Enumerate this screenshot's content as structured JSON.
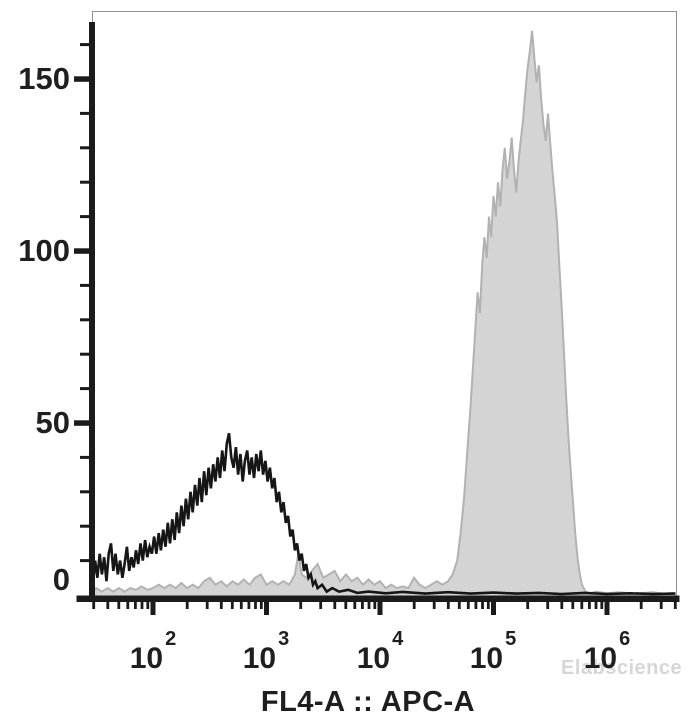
{
  "figure": {
    "watermark_text": "Elabscience",
    "x_axis_title": "FL4-A :: APC-A",
    "y_tick_labels": [
      "150",
      "100",
      "50",
      "0"
    ],
    "x_tick_labels": [
      {
        "base": "10",
        "exp": "2"
      },
      {
        "base": "10",
        "exp": "3"
      },
      {
        "base": "10",
        "exp": "4"
      },
      {
        "base": "10",
        "exp": "5"
      },
      {
        "base": "10",
        "exp": "6"
      }
    ]
  },
  "chart_data": {
    "type": "area",
    "subtype": "flow-cytometry-histogram-overlay",
    "title": "",
    "xlabel": "FL4-A :: APC-A",
    "ylabel": "",
    "x_scale": "log10",
    "x_domain_log10": [
      1.46,
      6.6
    ],
    "ylim": [
      0,
      170
    ],
    "y_major_ticks": [
      0,
      50,
      100,
      150
    ],
    "y_minor_tick_step": 10,
    "y_minor_tick_max": 160,
    "x_major_decades": [
      2,
      3,
      4,
      5,
      6
    ],
    "x_minor_mantissas": [
      2,
      3,
      4,
      5,
      6,
      7,
      8,
      9
    ],
    "grid": false,
    "legend": false,
    "colors": {
      "black_line": "#161616",
      "gray_fill": "#d4d4d4",
      "gray_line": "#b2b2b2",
      "axis": "#1b1b1b",
      "border": "#909090",
      "text": "#1f1f1f",
      "watermark": "#d6d6d6"
    },
    "series": [
      {
        "name": "black-open-histogram",
        "style": "line",
        "color": "#161616",
        "peak_log10x": 2.67,
        "peak_count": 47,
        "points_log10x_count": [
          [
            1.46,
            8
          ],
          [
            1.47,
            3
          ],
          [
            1.49,
            10
          ],
          [
            1.51,
            5
          ],
          [
            1.53,
            12
          ],
          [
            1.55,
            6
          ],
          [
            1.57,
            11
          ],
          [
            1.59,
            4
          ],
          [
            1.61,
            12
          ],
          [
            1.63,
            15
          ],
          [
            1.65,
            7
          ],
          [
            1.67,
            12
          ],
          [
            1.69,
            6
          ],
          [
            1.71,
            10
          ],
          [
            1.73,
            5
          ],
          [
            1.75,
            9
          ],
          [
            1.77,
            14
          ],
          [
            1.79,
            7
          ],
          [
            1.81,
            11
          ],
          [
            1.83,
            8
          ],
          [
            1.85,
            13
          ],
          [
            1.87,
            9
          ],
          [
            1.89,
            15
          ],
          [
            1.91,
            10
          ],
          [
            1.93,
            16
          ],
          [
            1.95,
            11
          ],
          [
            1.97,
            14
          ],
          [
            1.99,
            12
          ],
          [
            2.01,
            17
          ],
          [
            2.03,
            12
          ],
          [
            2.05,
            18
          ],
          [
            2.07,
            13
          ],
          [
            2.09,
            19
          ],
          [
            2.11,
            14
          ],
          [
            2.13,
            21
          ],
          [
            2.15,
            15
          ],
          [
            2.17,
            22
          ],
          [
            2.19,
            16
          ],
          [
            2.21,
            24
          ],
          [
            2.23,
            18
          ],
          [
            2.25,
            26
          ],
          [
            2.27,
            20
          ],
          [
            2.29,
            28
          ],
          [
            2.31,
            22
          ],
          [
            2.33,
            30
          ],
          [
            2.35,
            24
          ],
          [
            2.37,
            32
          ],
          [
            2.39,
            26
          ],
          [
            2.41,
            34
          ],
          [
            2.43,
            27
          ],
          [
            2.45,
            36
          ],
          [
            2.47,
            29
          ],
          [
            2.49,
            37
          ],
          [
            2.51,
            31
          ],
          [
            2.53,
            38
          ],
          [
            2.55,
            33
          ],
          [
            2.57,
            40
          ],
          [
            2.59,
            34
          ],
          [
            2.61,
            42
          ],
          [
            2.63,
            36
          ],
          [
            2.65,
            44
          ],
          [
            2.67,
            47
          ],
          [
            2.69,
            40
          ],
          [
            2.71,
            37
          ],
          [
            2.73,
            43
          ],
          [
            2.75,
            35
          ],
          [
            2.77,
            41
          ],
          [
            2.79,
            33
          ],
          [
            2.81,
            39
          ],
          [
            2.83,
            42
          ],
          [
            2.85,
            35
          ],
          [
            2.87,
            40
          ],
          [
            2.89,
            34
          ],
          [
            2.91,
            41
          ],
          [
            2.93,
            36
          ],
          [
            2.95,
            42
          ],
          [
            2.97,
            35
          ],
          [
            2.99,
            39
          ],
          [
            3.01,
            33
          ],
          [
            3.03,
            37
          ],
          [
            3.05,
            31
          ],
          [
            3.07,
            34
          ],
          [
            3.09,
            27
          ],
          [
            3.11,
            30
          ],
          [
            3.13,
            24
          ],
          [
            3.15,
            27
          ],
          [
            3.17,
            21
          ],
          [
            3.19,
            23
          ],
          [
            3.21,
            17
          ],
          [
            3.23,
            19
          ],
          [
            3.25,
            13
          ],
          [
            3.27,
            15
          ],
          [
            3.29,
            10
          ],
          [
            3.31,
            12
          ],
          [
            3.33,
            7
          ],
          [
            3.35,
            9
          ],
          [
            3.37,
            5
          ],
          [
            3.39,
            6
          ],
          [
            3.41,
            3
          ],
          [
            3.43,
            4
          ],
          [
            3.45,
            2
          ],
          [
            3.49,
            3
          ],
          [
            3.53,
            1
          ],
          [
            3.58,
            2
          ],
          [
            3.64,
            1
          ],
          [
            3.72,
            1.5
          ],
          [
            3.8,
            0.6
          ],
          [
            3.9,
            1
          ],
          [
            4.05,
            0.5
          ],
          [
            4.2,
            0.9
          ],
          [
            4.4,
            0.4
          ],
          [
            4.6,
            0.8
          ],
          [
            4.8,
            0.4
          ],
          [
            5.0,
            0.7
          ],
          [
            5.2,
            0.4
          ],
          [
            5.4,
            0.6
          ],
          [
            5.6,
            0.3
          ],
          [
            5.8,
            0.6
          ],
          [
            6.0,
            0.3
          ],
          [
            6.2,
            0.5
          ],
          [
            6.4,
            0.3
          ],
          [
            6.6,
            0.4
          ]
        ]
      },
      {
        "name": "gray-filled-histogram",
        "style": "filled",
        "color": "#b2b2b2",
        "fill": "#d4d4d4",
        "peak_log10x": 5.34,
        "peak_count": 164,
        "points_log10x_count": [
          [
            1.46,
            1
          ],
          [
            1.5,
            2
          ],
          [
            1.55,
            1
          ],
          [
            1.6,
            2
          ],
          [
            1.65,
            1
          ],
          [
            1.7,
            2
          ],
          [
            1.75,
            1
          ],
          [
            1.8,
            2
          ],
          [
            1.85,
            1.5
          ],
          [
            1.9,
            2.5
          ],
          [
            1.95,
            1.5
          ],
          [
            2.0,
            2
          ],
          [
            2.05,
            3
          ],
          [
            2.1,
            2
          ],
          [
            2.15,
            3
          ],
          [
            2.2,
            2
          ],
          [
            2.25,
            3.5
          ],
          [
            2.3,
            2
          ],
          [
            2.35,
            3
          ],
          [
            2.4,
            2
          ],
          [
            2.45,
            4
          ],
          [
            2.5,
            5
          ],
          [
            2.55,
            3
          ],
          [
            2.6,
            4
          ],
          [
            2.65,
            2.5
          ],
          [
            2.7,
            4
          ],
          [
            2.75,
            3
          ],
          [
            2.8,
            4.5
          ],
          [
            2.85,
            3
          ],
          [
            2.9,
            5
          ],
          [
            2.95,
            6
          ],
          [
            3.0,
            3
          ],
          [
            3.05,
            4
          ],
          [
            3.1,
            3
          ],
          [
            3.15,
            4
          ],
          [
            3.2,
            3
          ],
          [
            3.25,
            6
          ],
          [
            3.28,
            12
          ],
          [
            3.31,
            6
          ],
          [
            3.35,
            5
          ],
          [
            3.4,
            7
          ],
          [
            3.45,
            9
          ],
          [
            3.5,
            5
          ],
          [
            3.55,
            6
          ],
          [
            3.6,
            7
          ],
          [
            3.65,
            4
          ],
          [
            3.7,
            6
          ],
          [
            3.75,
            4
          ],
          [
            3.8,
            5
          ],
          [
            3.85,
            3
          ],
          [
            3.9,
            4.5
          ],
          [
            3.95,
            3
          ],
          [
            4.0,
            4
          ],
          [
            4.05,
            2
          ],
          [
            4.1,
            3
          ],
          [
            4.15,
            2
          ],
          [
            4.2,
            2.5
          ],
          [
            4.25,
            2
          ],
          [
            4.3,
            5
          ],
          [
            4.35,
            3
          ],
          [
            4.4,
            2
          ],
          [
            4.45,
            3
          ],
          [
            4.5,
            4
          ],
          [
            4.55,
            3
          ],
          [
            4.6,
            4
          ],
          [
            4.64,
            6
          ],
          [
            4.68,
            10
          ],
          [
            4.71,
            18
          ],
          [
            4.74,
            28
          ],
          [
            4.77,
            42
          ],
          [
            4.8,
            56
          ],
          [
            4.83,
            72
          ],
          [
            4.86,
            88
          ],
          [
            4.88,
            82
          ],
          [
            4.9,
            96
          ],
          [
            4.92,
            104
          ],
          [
            4.94,
            98
          ],
          [
            4.96,
            110
          ],
          [
            4.98,
            104
          ],
          [
            5.0,
            116
          ],
          [
            5.02,
            110
          ],
          [
            5.04,
            120
          ],
          [
            5.06,
            113
          ],
          [
            5.08,
            124
          ],
          [
            5.1,
            130
          ],
          [
            5.12,
            121
          ],
          [
            5.14,
            126
          ],
          [
            5.16,
            133
          ],
          [
            5.18,
            124
          ],
          [
            5.2,
            117
          ],
          [
            5.22,
            126
          ],
          [
            5.24,
            132
          ],
          [
            5.26,
            138
          ],
          [
            5.28,
            146
          ],
          [
            5.3,
            153
          ],
          [
            5.32,
            158
          ],
          [
            5.34,
            164
          ],
          [
            5.36,
            156
          ],
          [
            5.38,
            149
          ],
          [
            5.4,
            154
          ],
          [
            5.42,
            144
          ],
          [
            5.44,
            137
          ],
          [
            5.46,
            132
          ],
          [
            5.48,
            140
          ],
          [
            5.5,
            131
          ],
          [
            5.52,
            123
          ],
          [
            5.54,
            116
          ],
          [
            5.56,
            108
          ],
          [
            5.58,
            96
          ],
          [
            5.6,
            84
          ],
          [
            5.62,
            71
          ],
          [
            5.64,
            58
          ],
          [
            5.66,
            46
          ],
          [
            5.68,
            36
          ],
          [
            5.7,
            27
          ],
          [
            5.72,
            18
          ],
          [
            5.74,
            11
          ],
          [
            5.76,
            6
          ],
          [
            5.78,
            3
          ],
          [
            5.81,
            1
          ],
          [
            5.85,
            0.5
          ],
          [
            5.9,
            1
          ],
          [
            6.0,
            0.5
          ],
          [
            6.1,
            0.8
          ],
          [
            6.25,
            0.4
          ],
          [
            6.4,
            0.8
          ],
          [
            6.5,
            0.4
          ],
          [
            6.6,
            0.6
          ]
        ]
      }
    ]
  }
}
